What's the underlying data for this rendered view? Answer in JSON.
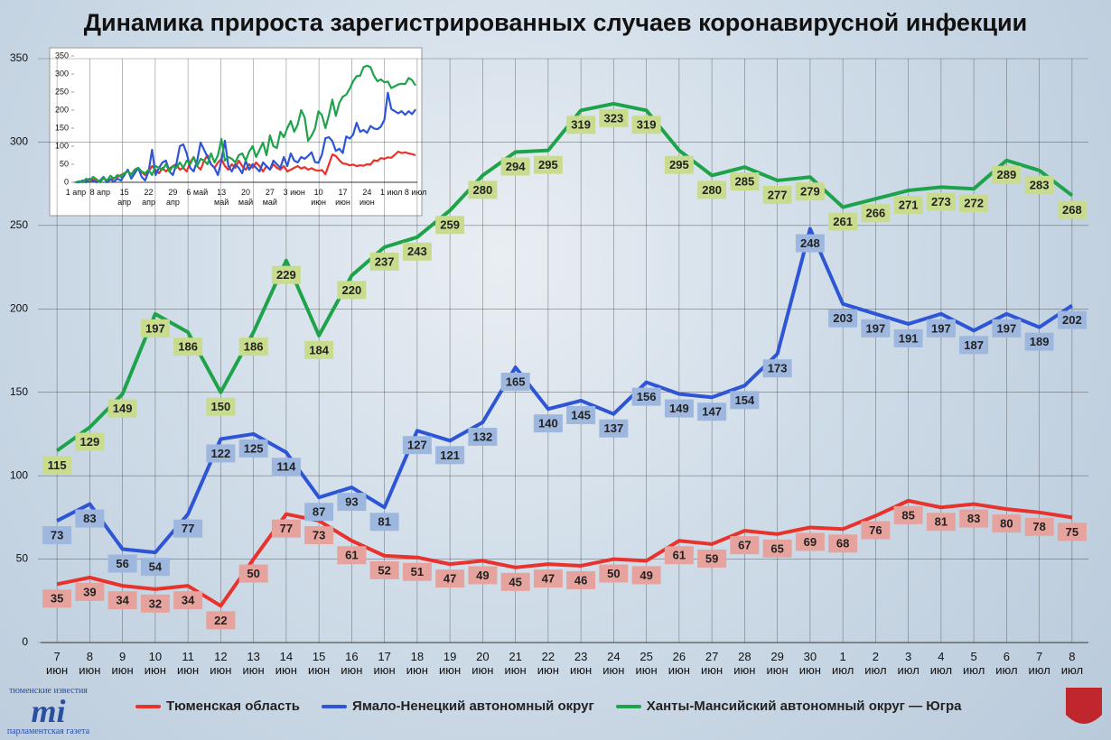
{
  "chart_data": [
    {
      "type": "line",
      "title": "Динамика прироста зарегистрированных случаев коронавирусной инфекции",
      "categories": [
        "7 июн",
        "8 июн",
        "9 июн",
        "10 июн",
        "11 июн",
        "12 июн",
        "13 июн",
        "14 июн",
        "15 июн",
        "16 июн",
        "17 июн",
        "18 июн",
        "19 июн",
        "20 июн",
        "21 июн",
        "22 июн",
        "23 июн",
        "24 июн",
        "25 июн",
        "26 июн",
        "27 июн",
        "28 июн",
        "29 июн",
        "30 июн",
        "1 июл",
        "2 июл",
        "3 июл",
        "4 июл",
        "5 июл",
        "6 июл",
        "7 июл",
        "8 июл"
      ],
      "series": [
        {
          "name": "Тюменская область",
          "color": "#e8322b",
          "label_color": "#e6a39d",
          "values": [
            35,
            39,
            34,
            32,
            34,
            22,
            50,
            77,
            73,
            61,
            52,
            51,
            47,
            49,
            45,
            47,
            46,
            50,
            49,
            61,
            59,
            67,
            65,
            69,
            68,
            76,
            85,
            81,
            83,
            80,
            78,
            75
          ]
        },
        {
          "name": "Ямало-Ненецкий автономный округ",
          "color": "#2d55d6",
          "label_color": "#9db7df",
          "values": [
            73,
            83,
            56,
            54,
            77,
            122,
            125,
            114,
            87,
            93,
            81,
            127,
            121,
            132,
            165,
            140,
            145,
            137,
            156,
            149,
            147,
            154,
            173,
            248,
            203,
            197,
            191,
            197,
            187,
            197,
            189,
            202
          ]
        },
        {
          "name": "Ханты-Мансийский автономный округ — Югра",
          "color": "#1ea34a",
          "label_color": "#c9dc8e",
          "values": [
            115,
            129,
            149,
            197,
            186,
            150,
            186,
            229,
            184,
            220,
            237,
            243,
            259,
            280,
            294,
            295,
            319,
            323,
            319,
            295,
            280,
            285,
            277,
            279,
            261,
            266,
            271,
            273,
            272,
            289,
            283,
            268
          ]
        }
      ],
      "ylim": [
        0,
        350
      ],
      "yticks": [
        0,
        50,
        100,
        150,
        200,
        250,
        300,
        350
      ],
      "grid": true,
      "data_labels": true,
      "legend": "bottom"
    },
    {
      "type": "line",
      "categories": [
        "1 апр",
        null,
        null,
        null,
        null,
        null,
        null,
        "8 апр",
        null,
        null,
        null,
        null,
        null,
        null,
        "15 апр",
        null,
        null,
        null,
        null,
        null,
        null,
        "22 апр",
        null,
        null,
        null,
        null,
        null,
        null,
        "29 апр",
        null,
        null,
        null,
        null,
        null,
        null,
        "6 май",
        null,
        null,
        null,
        null,
        null,
        null,
        "13 май",
        null,
        null,
        null,
        null,
        null,
        null,
        "20 май",
        null,
        null,
        null,
        null,
        null,
        null,
        "27 май",
        null,
        null,
        null,
        null,
        null,
        null,
        "3 июн",
        null,
        null,
        null,
        null,
        null,
        null,
        "10 июн",
        null,
        null,
        null,
        null,
        null,
        null,
        "17 июн",
        null,
        null,
        null,
        null,
        null,
        null,
        "24 июн",
        null,
        null,
        null,
        null,
        null,
        null,
        "1 июл",
        null,
        null,
        null,
        null,
        null,
        null,
        "8 июл"
      ],
      "series": [
        {
          "color": "#e8322b",
          "values": [
            0,
            2,
            0,
            5,
            3,
            8,
            2,
            5,
            10,
            4,
            8,
            12,
            15,
            20,
            25,
            30,
            22,
            35,
            40,
            28,
            20,
            30,
            45,
            35,
            25,
            40,
            30,
            38,
            45,
            50,
            35,
            40,
            30,
            55,
            70,
            45,
            35,
            60,
            75,
            50,
            40,
            55,
            65,
            45,
            35,
            50,
            40,
            60,
            45,
            35,
            50,
            40,
            55,
            45,
            30,
            45,
            35,
            50,
            40,
            35,
            45,
            30,
            35,
            40,
            45,
            38,
            42,
            35,
            39,
            34,
            32,
            34,
            22,
            50,
            77,
            73,
            61,
            52,
            51,
            47,
            49,
            45,
            47,
            46,
            50,
            49,
            61,
            59,
            67,
            65,
            69,
            68,
            76,
            85,
            81,
            83,
            80,
            78,
            75
          ]
        },
        {
          "color": "#2d55d6",
          "values": [
            0,
            0,
            5,
            0,
            10,
            3,
            0,
            5,
            15,
            0,
            8,
            2,
            10,
            5,
            20,
            35,
            10,
            25,
            40,
            15,
            5,
            30,
            90,
            20,
            40,
            55,
            60,
            30,
            20,
            50,
            100,
            105,
            80,
            40,
            30,
            60,
            110,
            90,
            70,
            50,
            40,
            20,
            60,
            115,
            45,
            30,
            50,
            40,
            25,
            60,
            35,
            50,
            40,
            30,
            55,
            45,
            35,
            60,
            50,
            40,
            70,
            45,
            80,
            60,
            55,
            70,
            65,
            73,
            83,
            56,
            54,
            77,
            122,
            125,
            114,
            87,
            93,
            81,
            127,
            121,
            132,
            165,
            140,
            145,
            137,
            156,
            149,
            147,
            154,
            173,
            248,
            203,
            197,
            191,
            197,
            187,
            197,
            189,
            202
          ]
        },
        {
          "color": "#1ea34a",
          "values": [
            0,
            3,
            0,
            10,
            5,
            15,
            8,
            0,
            12,
            5,
            18,
            10,
            20,
            15,
            25,
            30,
            20,
            35,
            40,
            30,
            25,
            35,
            20,
            45,
            40,
            35,
            50,
            30,
            45,
            40,
            55,
            40,
            60,
            50,
            70,
            45,
            65,
            60,
            50,
            80,
            55,
            75,
            120,
            60,
            70,
            65,
            55,
            75,
            80,
            60,
            85,
            100,
            70,
            90,
            110,
            75,
            130,
            100,
            95,
            140,
            125,
            150,
            170,
            140,
            160,
            200,
            180,
            115,
            129,
            149,
            197,
            186,
            150,
            186,
            229,
            184,
            220,
            237,
            243,
            259,
            280,
            294,
            295,
            319,
            323,
            319,
            295,
            280,
            285,
            277,
            279,
            261,
            266,
            271,
            273,
            272,
            289,
            283,
            268
          ]
        }
      ],
      "ylim": [
        0,
        350
      ],
      "yticks": [
        0,
        50,
        100,
        150,
        200,
        250,
        300,
        350
      ],
      "grid": false,
      "data_labels": false
    }
  ],
  "logo": {
    "top": "тюменские известия",
    "mark": "mi",
    "bottom": "парламентская газета"
  }
}
